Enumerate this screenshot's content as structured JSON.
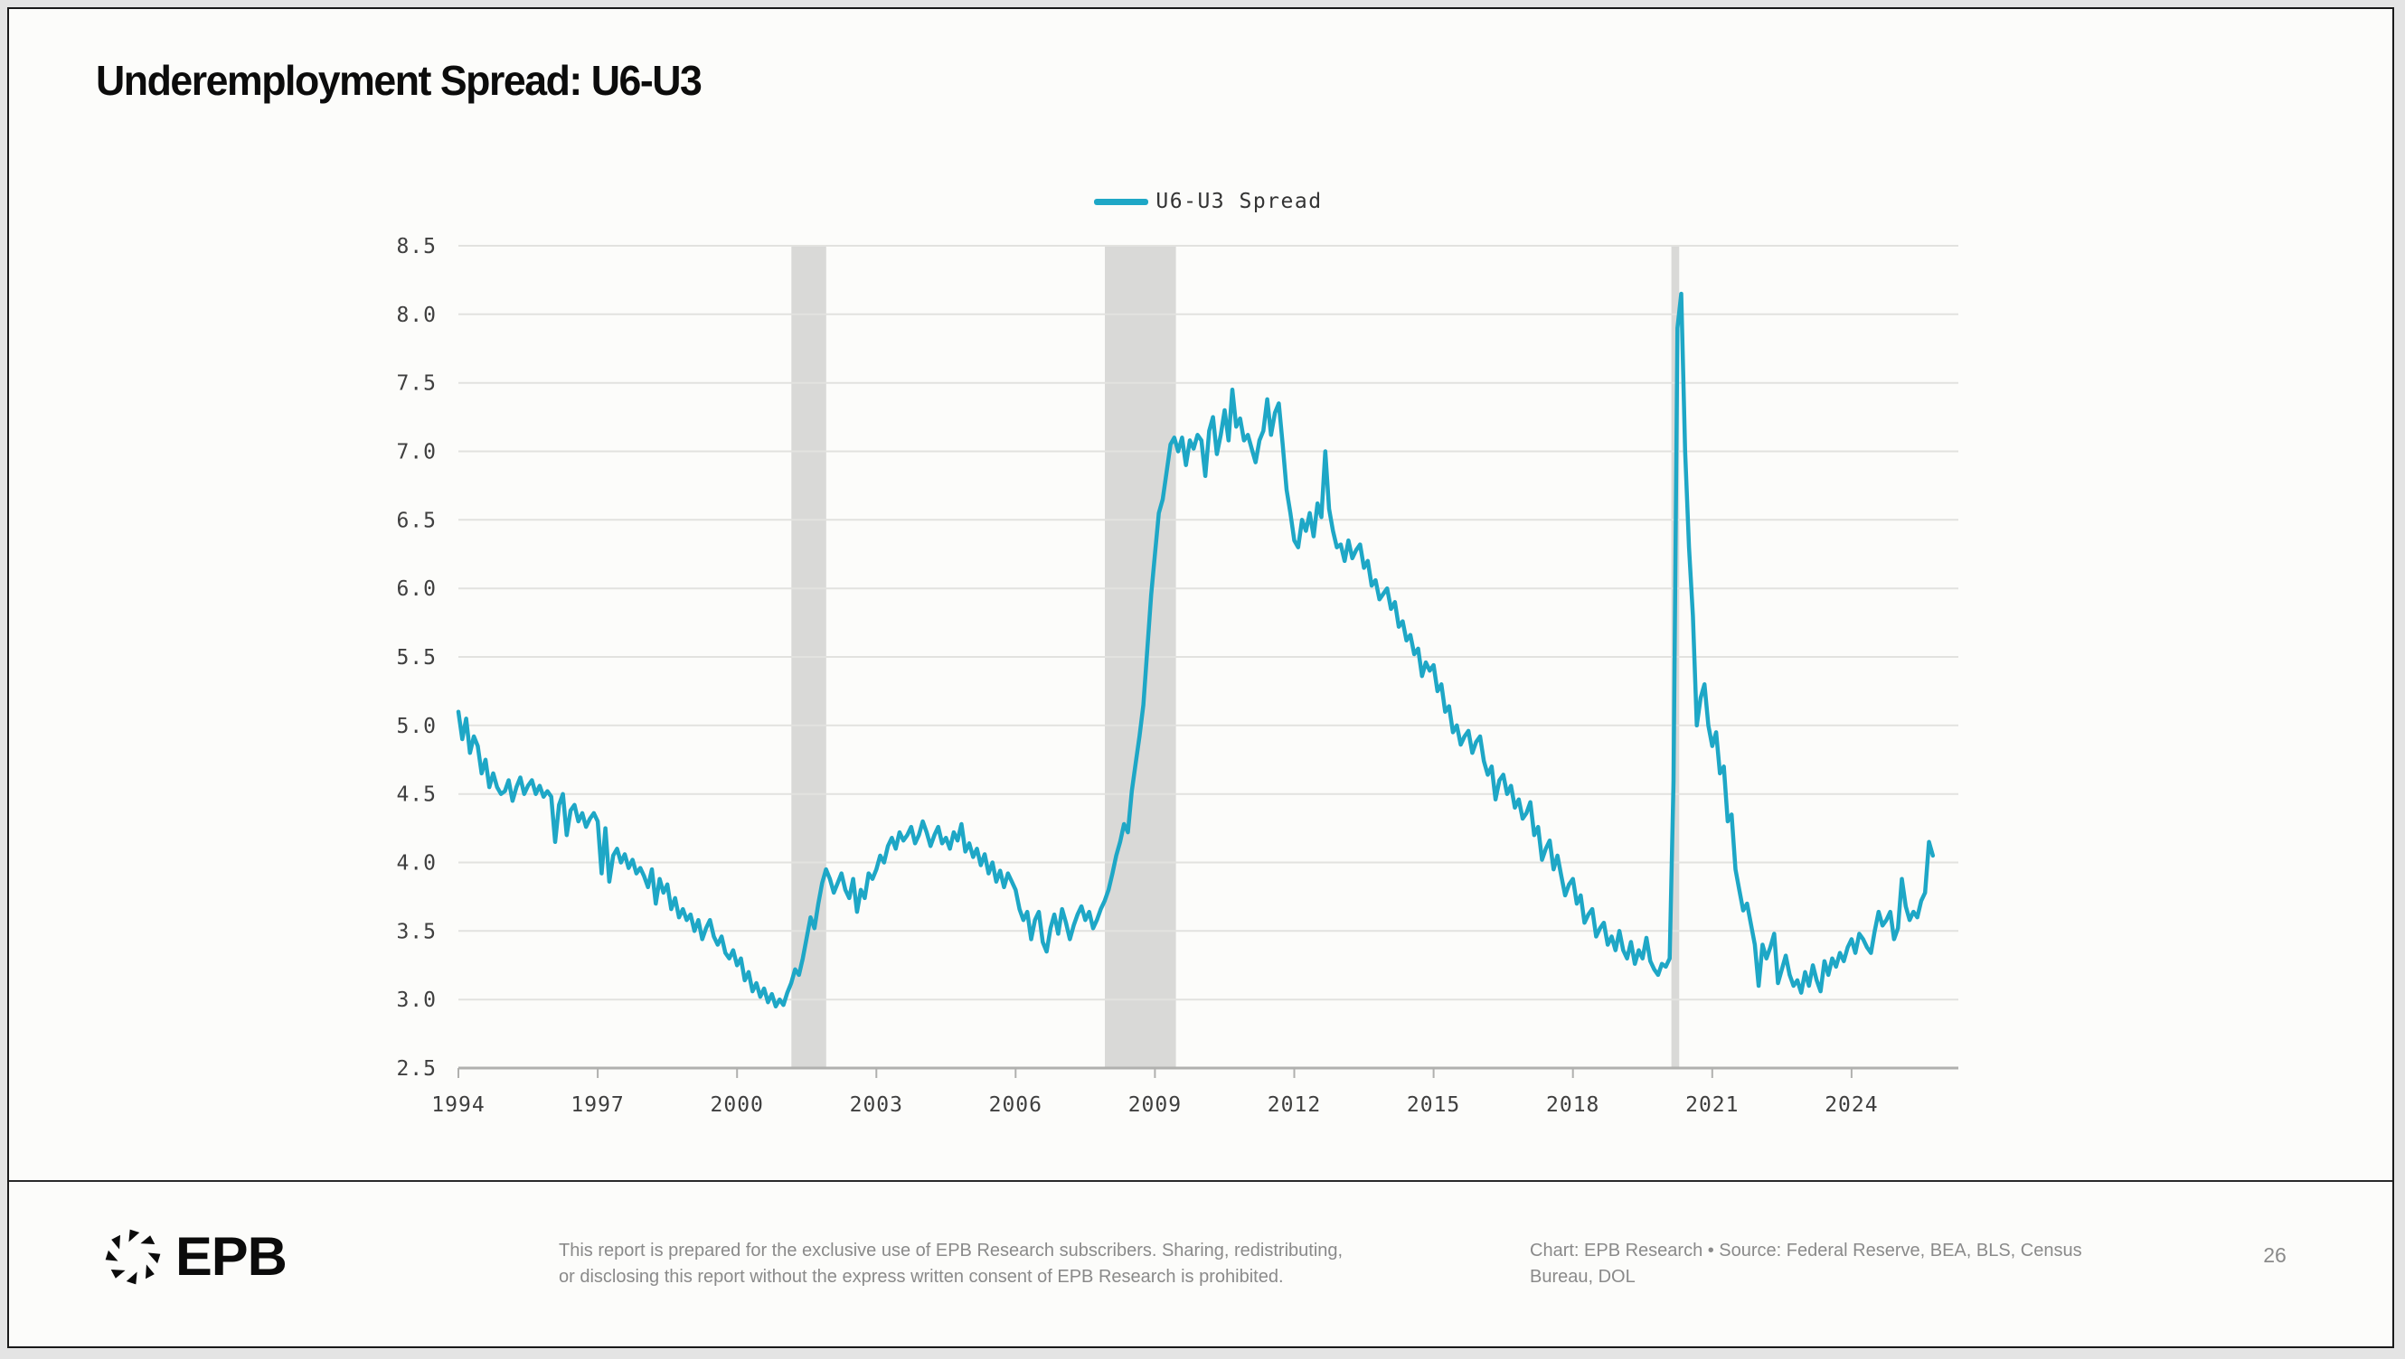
{
  "slide": {
    "title": "Underemployment Spread: U6-U3",
    "page_number": "26"
  },
  "footer": {
    "logo_text": "EPB",
    "disclaimer_line1": "This report is prepared for the exclusive use of EPB Research subscribers. Sharing, redistributing,",
    "disclaimer_line2": "or disclosing this report without the express written consent of EPB Research is prohibited.",
    "source_line1": "Chart: EPB Research  •  Source: Federal Reserve, BEA, BLS, Census",
    "source_line2": "Bureau, DOL"
  },
  "chart_data": {
    "type": "line",
    "title": "Underemployment Spread: U6-U3",
    "xlabel": "",
    "ylabel": "",
    "ylim": [
      2.5,
      8.5
    ],
    "y_tick_step": 0.5,
    "xlim": [
      1994,
      2026.3
    ],
    "x_axis_ticks": [
      1994,
      1997,
      2000,
      2003,
      2006,
      2009,
      2012,
      2015,
      2018,
      2021,
      2024
    ],
    "grid": "horizontal",
    "legend_position": "top-center",
    "colors": {
      "line": "#1ea7c6",
      "recession_band": "#d9d9d7",
      "gridline": "#e2e2df",
      "axis": "#b0b0ae",
      "tick_text": "#3f3f3f"
    },
    "recession_bands": [
      {
        "start": 2001.17,
        "end": 2001.92
      },
      {
        "start": 2007.92,
        "end": 2009.45
      },
      {
        "start": 2020.12,
        "end": 2020.29
      }
    ],
    "series": [
      {
        "name": "U6-U3 Spread",
        "color": "#1ea7c6",
        "start_year": 1994,
        "frequency": "monthly",
        "values": [
          5.1,
          4.9,
          5.05,
          4.8,
          4.92,
          4.85,
          4.65,
          4.75,
          4.55,
          4.65,
          4.55,
          4.5,
          4.52,
          4.6,
          4.45,
          4.55,
          4.62,
          4.5,
          4.56,
          4.6,
          4.5,
          4.56,
          4.48,
          4.52,
          4.48,
          4.15,
          4.42,
          4.5,
          4.2,
          4.38,
          4.42,
          4.3,
          4.36,
          4.26,
          4.32,
          4.36,
          4.3,
          3.92,
          4.25,
          3.86,
          4.05,
          4.1,
          4.0,
          4.06,
          3.96,
          4.02,
          3.92,
          3.96,
          3.9,
          3.82,
          3.95,
          3.7,
          3.88,
          3.78,
          3.84,
          3.66,
          3.74,
          3.6,
          3.66,
          3.58,
          3.62,
          3.5,
          3.58,
          3.44,
          3.52,
          3.58,
          3.46,
          3.4,
          3.46,
          3.34,
          3.3,
          3.36,
          3.25,
          3.3,
          3.14,
          3.2,
          3.06,
          3.12,
          3.02,
          3.08,
          2.98,
          3.04,
          2.95,
          3.0,
          2.96,
          3.05,
          3.12,
          3.22,
          3.18,
          3.3,
          3.45,
          3.6,
          3.52,
          3.7,
          3.85,
          3.95,
          3.88,
          3.78,
          3.85,
          3.92,
          3.8,
          3.74,
          3.88,
          3.64,
          3.8,
          3.74,
          3.92,
          3.88,
          3.95,
          4.05,
          4.0,
          4.12,
          4.18,
          4.1,
          4.22,
          4.16,
          4.2,
          4.26,
          4.14,
          4.2,
          4.3,
          4.22,
          4.12,
          4.2,
          4.26,
          4.14,
          4.18,
          4.1,
          4.22,
          4.16,
          4.28,
          4.08,
          4.14,
          4.04,
          4.1,
          3.98,
          4.06,
          3.92,
          4.0,
          3.86,
          3.94,
          3.82,
          3.92,
          3.86,
          3.8,
          3.66,
          3.58,
          3.64,
          3.44,
          3.58,
          3.64,
          3.42,
          3.35,
          3.52,
          3.62,
          3.48,
          3.66,
          3.56,
          3.44,
          3.54,
          3.62,
          3.68,
          3.58,
          3.64,
          3.52,
          3.58,
          3.66,
          3.72,
          3.8,
          3.92,
          4.05,
          4.15,
          4.28,
          4.22,
          4.52,
          4.72,
          4.92,
          5.15,
          5.55,
          5.95,
          6.25,
          6.55,
          6.65,
          6.85,
          7.05,
          7.1,
          7.0,
          7.1,
          6.9,
          7.08,
          7.02,
          7.12,
          7.08,
          6.82,
          7.15,
          7.25,
          6.98,
          7.12,
          7.3,
          7.08,
          7.45,
          7.18,
          7.24,
          7.08,
          7.12,
          7.02,
          6.92,
          7.08,
          7.15,
          7.38,
          7.12,
          7.28,
          7.35,
          7.05,
          6.72,
          6.55,
          6.35,
          6.3,
          6.5,
          6.42,
          6.55,
          6.38,
          6.62,
          6.52,
          7.0,
          6.58,
          6.42,
          6.3,
          6.32,
          6.2,
          6.35,
          6.22,
          6.28,
          6.32,
          6.15,
          6.2,
          6.02,
          6.06,
          5.92,
          5.96,
          6.0,
          5.85,
          5.9,
          5.72,
          5.76,
          5.62,
          5.66,
          5.52,
          5.56,
          5.36,
          5.46,
          5.4,
          5.44,
          5.25,
          5.3,
          5.1,
          5.14,
          4.95,
          5.0,
          4.86,
          4.92,
          4.96,
          4.8,
          4.88,
          4.92,
          4.74,
          4.64,
          4.7,
          4.46,
          4.6,
          4.64,
          4.5,
          4.56,
          4.4,
          4.46,
          4.32,
          4.36,
          4.44,
          4.2,
          4.26,
          4.02,
          4.1,
          4.16,
          3.95,
          4.05,
          3.9,
          3.76,
          3.84,
          3.88,
          3.7,
          3.76,
          3.56,
          3.62,
          3.66,
          3.46,
          3.52,
          3.56,
          3.4,
          3.46,
          3.36,
          3.5,
          3.36,
          3.3,
          3.42,
          3.26,
          3.36,
          3.3,
          3.45,
          3.28,
          3.22,
          3.18,
          3.26,
          3.24,
          3.3,
          4.6,
          7.9,
          8.15,
          7.0,
          6.3,
          5.8,
          5.0,
          5.2,
          5.3,
          5.0,
          4.85,
          4.95,
          4.65,
          4.7,
          4.3,
          4.35,
          3.95,
          3.8,
          3.65,
          3.7,
          3.55,
          3.4,
          3.1,
          3.4,
          3.3,
          3.38,
          3.48,
          3.12,
          3.22,
          3.32,
          3.18,
          3.1,
          3.14,
          3.05,
          3.2,
          3.1,
          3.25,
          3.14,
          3.06,
          3.28,
          3.18,
          3.3,
          3.24,
          3.34,
          3.28,
          3.38,
          3.44,
          3.34,
          3.48,
          3.44,
          3.38,
          3.34,
          3.5,
          3.64,
          3.54,
          3.58,
          3.64,
          3.44,
          3.52,
          3.88,
          3.68,
          3.58,
          3.64,
          3.6,
          3.72,
          3.78,
          4.15,
          4.05
        ]
      }
    ]
  }
}
